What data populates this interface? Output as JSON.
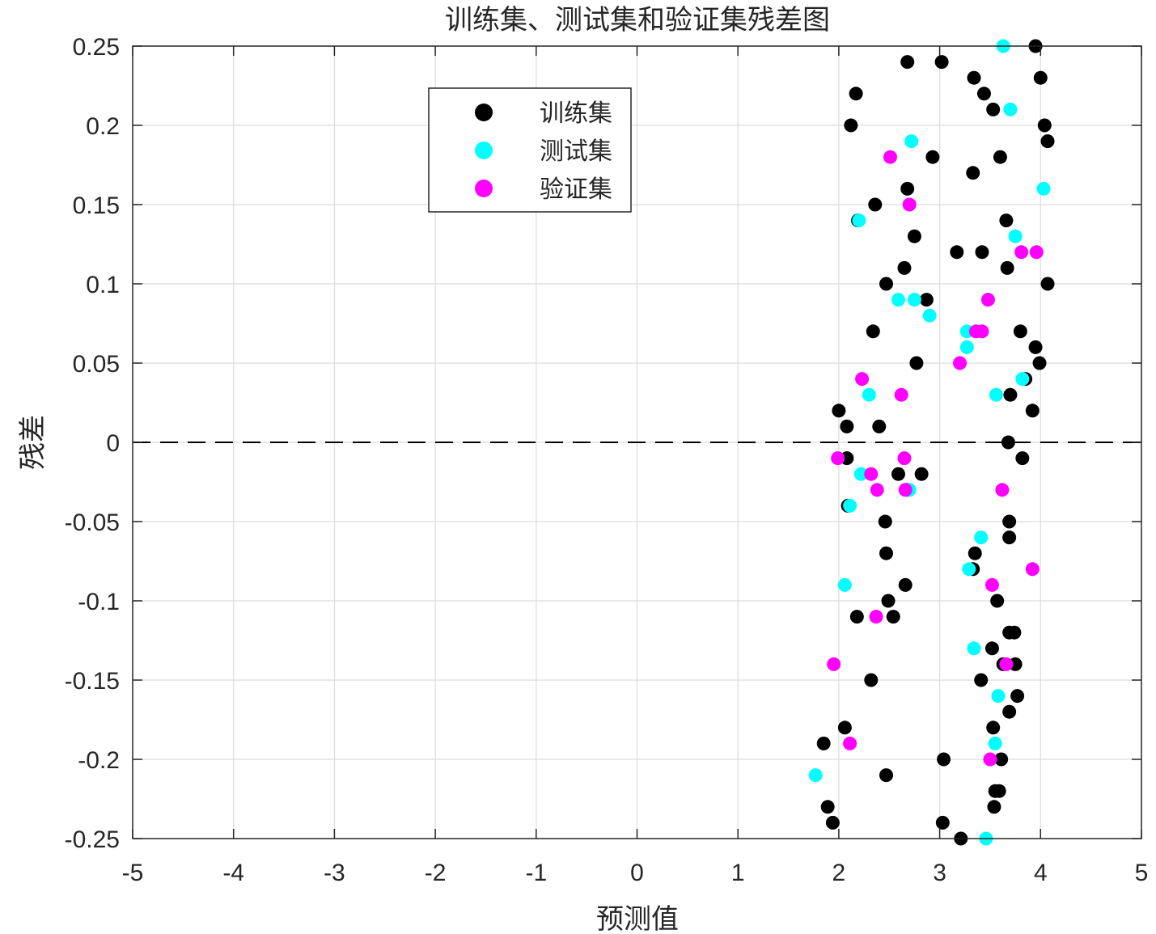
{
  "chart_data": {
    "type": "scatter",
    "title": "训练集、测试集和验证集残差图",
    "xlabel": "预测值",
    "ylabel": "残差",
    "xlim": [
      -5,
      5
    ],
    "ylim": [
      -0.25,
      0.25
    ],
    "xticks": [
      "-5",
      "-4",
      "-3",
      "-2",
      "-1",
      "0",
      "1",
      "2",
      "3",
      "4",
      "5"
    ],
    "yticks": [
      "0.25",
      "0.2",
      "0.15",
      "0.1",
      "0.05",
      "0",
      "-0.05",
      "-0.1",
      "-0.15",
      "-0.2",
      "-0.25"
    ],
    "grid": true,
    "legend_position": "top-left",
    "reference_line": {
      "y": 0,
      "style": "dashed",
      "color": "#000000"
    },
    "series": [
      {
        "name": "训练集",
        "color": "#000000",
        "points": [
          [
            3.95,
            0.25
          ],
          [
            2.68,
            0.24
          ],
          [
            3.02,
            0.24
          ],
          [
            3.34,
            0.23
          ],
          [
            4.0,
            0.23
          ],
          [
            2.17,
            0.22
          ],
          [
            3.44,
            0.22
          ],
          [
            3.53,
            0.21
          ],
          [
            2.12,
            0.2
          ],
          [
            4.04,
            0.2
          ],
          [
            4.07,
            0.19
          ],
          [
            2.93,
            0.18
          ],
          [
            3.6,
            0.18
          ],
          [
            3.33,
            0.17
          ],
          [
            2.68,
            0.16
          ],
          [
            2.36,
            0.15
          ],
          [
            2.19,
            0.14
          ],
          [
            3.66,
            0.14
          ],
          [
            2.75,
            0.13
          ],
          [
            3.17,
            0.12
          ],
          [
            3.42,
            0.12
          ],
          [
            2.65,
            0.11
          ],
          [
            3.67,
            0.11
          ],
          [
            2.47,
            0.1
          ],
          [
            4.07,
            0.1
          ],
          [
            2.87,
            0.09
          ],
          [
            2.34,
            0.07
          ],
          [
            3.8,
            0.07
          ],
          [
            2.77,
            0.05
          ],
          [
            3.95,
            0.06
          ],
          [
            3.99,
            0.05
          ],
          [
            3.85,
            0.04
          ],
          [
            3.7,
            0.03
          ],
          [
            2.0,
            0.02
          ],
          [
            3.92,
            0.02
          ],
          [
            2.08,
            0.01
          ],
          [
            2.4,
            0.01
          ],
          [
            3.68,
            0.0
          ],
          [
            2.08,
            -0.01
          ],
          [
            3.82,
            -0.01
          ],
          [
            2.59,
            -0.02
          ],
          [
            2.82,
            -0.02
          ],
          [
            2.68,
            -0.03
          ],
          [
            2.09,
            -0.04
          ],
          [
            2.46,
            -0.05
          ],
          [
            3.69,
            -0.05
          ],
          [
            3.69,
            -0.06
          ],
          [
            2.47,
            -0.07
          ],
          [
            3.35,
            -0.07
          ],
          [
            3.33,
            -0.08
          ],
          [
            2.66,
            -0.09
          ],
          [
            2.49,
            -0.1
          ],
          [
            3.57,
            -0.1
          ],
          [
            2.18,
            -0.11
          ],
          [
            2.54,
            -0.11
          ],
          [
            3.69,
            -0.12
          ],
          [
            3.74,
            -0.12
          ],
          [
            3.52,
            -0.13
          ],
          [
            3.63,
            -0.14
          ],
          [
            3.75,
            -0.14
          ],
          [
            2.32,
            -0.15
          ],
          [
            3.41,
            -0.15
          ],
          [
            3.77,
            -0.16
          ],
          [
            3.69,
            -0.17
          ],
          [
            2.06,
            -0.18
          ],
          [
            3.53,
            -0.18
          ],
          [
            1.85,
            -0.19
          ],
          [
            3.04,
            -0.2
          ],
          [
            3.61,
            -0.2
          ],
          [
            2.47,
            -0.21
          ],
          [
            3.55,
            -0.22
          ],
          [
            3.59,
            -0.22
          ],
          [
            1.89,
            -0.23
          ],
          [
            3.54,
            -0.23
          ],
          [
            1.94,
            -0.24
          ],
          [
            3.03,
            -0.24
          ],
          [
            3.21,
            -0.25
          ]
        ]
      },
      {
        "name": "测试集",
        "color": "#00ffff",
        "points": [
          [
            3.63,
            0.25
          ],
          [
            3.7,
            0.21
          ],
          [
            2.72,
            0.19
          ],
          [
            4.03,
            0.16
          ],
          [
            2.2,
            0.14
          ],
          [
            3.75,
            0.13
          ],
          [
            2.59,
            0.09
          ],
          [
            2.75,
            0.09
          ],
          [
            2.9,
            0.08
          ],
          [
            3.27,
            0.07
          ],
          [
            3.27,
            0.06
          ],
          [
            3.82,
            0.04
          ],
          [
            2.3,
            0.03
          ],
          [
            3.56,
            0.03
          ],
          [
            2.22,
            -0.02
          ],
          [
            2.7,
            -0.03
          ],
          [
            2.11,
            -0.04
          ],
          [
            3.41,
            -0.06
          ],
          [
            3.29,
            -0.08
          ],
          [
            2.06,
            -0.09
          ],
          [
            3.34,
            -0.13
          ],
          [
            3.58,
            -0.16
          ],
          [
            3.55,
            -0.19
          ],
          [
            1.77,
            -0.21
          ],
          [
            3.46,
            -0.25
          ]
        ]
      },
      {
        "name": "验证集",
        "color": "#ff00ff",
        "points": [
          [
            2.51,
            0.18
          ],
          [
            2.7,
            0.15
          ],
          [
            3.81,
            0.12
          ],
          [
            3.96,
            0.12
          ],
          [
            3.48,
            0.09
          ],
          [
            3.36,
            0.07
          ],
          [
            3.42,
            0.07
          ],
          [
            3.2,
            0.05
          ],
          [
            2.23,
            0.04
          ],
          [
            2.62,
            0.03
          ],
          [
            1.99,
            -0.01
          ],
          [
            2.65,
            -0.01
          ],
          [
            2.32,
            -0.02
          ],
          [
            2.38,
            -0.03
          ],
          [
            2.66,
            -0.03
          ],
          [
            3.62,
            -0.03
          ],
          [
            3.92,
            -0.08
          ],
          [
            3.52,
            -0.09
          ],
          [
            2.37,
            -0.11
          ],
          [
            3.66,
            -0.14
          ],
          [
            1.95,
            -0.14
          ],
          [
            2.11,
            -0.19
          ],
          [
            3.5,
            -0.2
          ]
        ]
      }
    ]
  }
}
